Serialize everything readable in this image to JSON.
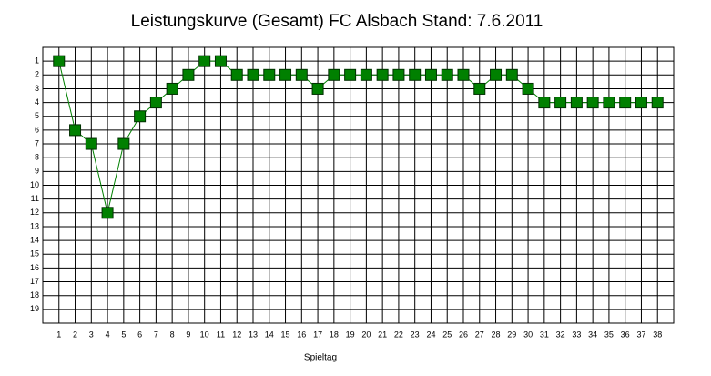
{
  "chart_data": {
    "type": "line",
    "title": "Leistungskurve (Gesamt) FC Alsbach Stand: 7.6.2011",
    "x_label": "Spieltag",
    "x": [
      1,
      2,
      3,
      4,
      5,
      6,
      7,
      8,
      9,
      10,
      11,
      12,
      13,
      14,
      15,
      16,
      17,
      18,
      19,
      20,
      21,
      22,
      23,
      24,
      25,
      26,
      27,
      28,
      29,
      30,
      31,
      32,
      33,
      34,
      35,
      36,
      37,
      38
    ],
    "series": [
      {
        "color": "#008000",
        "values": [
          1,
          6,
          7,
          12,
          7,
          5,
          4,
          3,
          2,
          1,
          1,
          2,
          2,
          2,
          2,
          2,
          3,
          2,
          2,
          2,
          2,
          2,
          2,
          2,
          2,
          2,
          3,
          2,
          2,
          3,
          4,
          4,
          4,
          4,
          4,
          4,
          4,
          4
        ]
      }
    ],
    "xlim": [
      0,
      39
    ],
    "xticks": [
      1,
      2,
      3,
      4,
      5,
      6,
      7,
      8,
      9,
      10,
      11,
      12,
      13,
      14,
      15,
      16,
      17,
      18,
      19,
      20,
      21,
      22,
      23,
      24,
      25,
      26,
      27,
      28,
      29,
      30,
      31,
      32,
      33,
      34,
      35,
      36,
      37,
      38
    ],
    "ylim": [
      0,
      20
    ],
    "y_inverted": true,
    "yticks": [
      1,
      2,
      3,
      4,
      5,
      6,
      7,
      8,
      9,
      10,
      11,
      12,
      13,
      14,
      15,
      16,
      17,
      18,
      19
    ],
    "grid": true
  }
}
